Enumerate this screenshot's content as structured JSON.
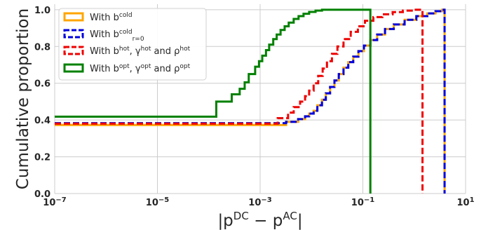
{
  "chart_data": {
    "type": "line",
    "xlabel_parts": [
      [
        "|p",
        ""
      ],
      [
        "DC",
        "sup"
      ],
      [
        " − p",
        ""
      ],
      [
        "AC",
        "sup"
      ],
      [
        "|",
        ""
      ]
    ],
    "ylabel": "Cumulative proportion",
    "x_scale": "log",
    "xlim": [
      1e-07,
      10
    ],
    "ylim": [
      0,
      1.03
    ],
    "x_ticks": [
      {
        "value": 1e-07,
        "base": "10",
        "exp": "−7"
      },
      {
        "value": 1e-05,
        "base": "10",
        "exp": "−5"
      },
      {
        "value": 0.001,
        "base": "10",
        "exp": "−3"
      },
      {
        "value": 0.1,
        "base": "10",
        "exp": "−1"
      },
      {
        "value": 10,
        "base": "10",
        "exp": "1"
      }
    ],
    "y_ticks": [
      0.0,
      0.2,
      0.4,
      0.6,
      0.8,
      1.0
    ],
    "y_tick_labels": [
      "0.0",
      "0.2",
      "0.4",
      "0.6",
      "0.8",
      "1.0"
    ],
    "grid": true,
    "legend_position": "top-left",
    "series": [
      {
        "label_parts": [
          [
            "With b",
            ""
          ],
          [
            "cold",
            "sup"
          ]
        ],
        "color": "#ffa500",
        "style": "solid",
        "points": [
          [
            1e-07,
            0.373
          ],
          [
            0.0032,
            0.373
          ],
          [
            0.0032,
            0.39
          ],
          [
            0.0055,
            0.39
          ],
          [
            0.0055,
            0.405
          ],
          [
            0.0075,
            0.405
          ],
          [
            0.0075,
            0.42
          ],
          [
            0.009,
            0.42
          ],
          [
            0.009,
            0.435
          ],
          [
            0.011,
            0.435
          ],
          [
            0.011,
            0.45
          ],
          [
            0.013,
            0.45
          ],
          [
            0.013,
            0.48
          ],
          [
            0.016,
            0.48
          ],
          [
            0.016,
            0.51
          ],
          [
            0.019,
            0.51
          ],
          [
            0.019,
            0.545
          ],
          [
            0.023,
            0.545
          ],
          [
            0.023,
            0.58
          ],
          [
            0.028,
            0.58
          ],
          [
            0.028,
            0.615
          ],
          [
            0.034,
            0.615
          ],
          [
            0.034,
            0.65
          ],
          [
            0.042,
            0.65
          ],
          [
            0.042,
            0.685
          ],
          [
            0.052,
            0.685
          ],
          [
            0.052,
            0.715
          ],
          [
            0.065,
            0.715
          ],
          [
            0.065,
            0.745
          ],
          [
            0.082,
            0.745
          ],
          [
            0.082,
            0.775
          ],
          [
            0.105,
            0.775
          ],
          [
            0.105,
            0.805
          ],
          [
            0.14,
            0.805
          ],
          [
            0.14,
            0.835
          ],
          [
            0.19,
            0.835
          ],
          [
            0.19,
            0.865
          ],
          [
            0.27,
            0.865
          ],
          [
            0.27,
            0.895
          ],
          [
            0.4,
            0.895
          ],
          [
            0.4,
            0.92
          ],
          [
            0.65,
            0.92
          ],
          [
            0.65,
            0.945
          ],
          [
            1.1,
            0.945
          ],
          [
            1.1,
            0.965
          ],
          [
            1.8,
            0.965
          ],
          [
            1.8,
            0.98
          ],
          [
            2.6,
            0.98
          ],
          [
            2.6,
            0.992
          ],
          [
            3.5,
            0.992
          ],
          [
            3.5,
            1.0
          ],
          [
            3.9,
            1.0
          ],
          [
            3.9,
            0.0
          ]
        ]
      },
      {
        "label_parts": [
          [
            "With b",
            ""
          ],
          [
            "cold",
            "sup"
          ],
          [
            "r=0",
            "sub"
          ]
        ],
        "color": "#0000dd",
        "style": "dashed",
        "points": [
          [
            1e-07,
            0.383
          ],
          [
            0.0032,
            0.383
          ],
          [
            0.0032,
            0.39
          ],
          [
            0.0055,
            0.39
          ],
          [
            0.0055,
            0.405
          ],
          [
            0.0075,
            0.405
          ],
          [
            0.0075,
            0.42
          ],
          [
            0.009,
            0.42
          ],
          [
            0.009,
            0.435
          ],
          [
            0.011,
            0.435
          ],
          [
            0.011,
            0.45
          ],
          [
            0.013,
            0.45
          ],
          [
            0.013,
            0.48
          ],
          [
            0.016,
            0.48
          ],
          [
            0.016,
            0.51
          ],
          [
            0.019,
            0.51
          ],
          [
            0.019,
            0.545
          ],
          [
            0.023,
            0.545
          ],
          [
            0.023,
            0.58
          ],
          [
            0.028,
            0.58
          ],
          [
            0.028,
            0.615
          ],
          [
            0.034,
            0.615
          ],
          [
            0.034,
            0.65
          ],
          [
            0.042,
            0.65
          ],
          [
            0.042,
            0.685
          ],
          [
            0.052,
            0.685
          ],
          [
            0.052,
            0.715
          ],
          [
            0.065,
            0.715
          ],
          [
            0.065,
            0.745
          ],
          [
            0.082,
            0.745
          ],
          [
            0.082,
            0.775
          ],
          [
            0.105,
            0.775
          ],
          [
            0.105,
            0.805
          ],
          [
            0.14,
            0.805
          ],
          [
            0.14,
            0.835
          ],
          [
            0.19,
            0.835
          ],
          [
            0.19,
            0.865
          ],
          [
            0.27,
            0.865
          ],
          [
            0.27,
            0.895
          ],
          [
            0.4,
            0.895
          ],
          [
            0.4,
            0.92
          ],
          [
            0.65,
            0.92
          ],
          [
            0.65,
            0.945
          ],
          [
            1.1,
            0.945
          ],
          [
            1.1,
            0.965
          ],
          [
            1.8,
            0.965
          ],
          [
            1.8,
            0.98
          ],
          [
            2.6,
            0.98
          ],
          [
            2.6,
            0.992
          ],
          [
            3.5,
            0.992
          ],
          [
            3.5,
            1.0
          ],
          [
            3.9,
            1.0
          ],
          [
            3.9,
            0.0
          ]
        ]
      },
      {
        "label_parts": [
          [
            "With b",
            ""
          ],
          [
            "hot",
            "sup"
          ],
          [
            ", γ",
            ""
          ],
          [
            "hot",
            "sup"
          ],
          [
            " and ρ",
            ""
          ],
          [
            "hot",
            "sup"
          ]
        ],
        "color": "#ee0000",
        "style": "dashed",
        "points": [
          [
            1e-07,
            0.38
          ],
          [
            0.0022,
            0.38
          ],
          [
            0.0022,
            0.41
          ],
          [
            0.0035,
            0.41
          ],
          [
            0.0035,
            0.44
          ],
          [
            0.0045,
            0.44
          ],
          [
            0.0045,
            0.47
          ],
          [
            0.006,
            0.47
          ],
          [
            0.006,
            0.5
          ],
          [
            0.0075,
            0.5
          ],
          [
            0.0075,
            0.53
          ],
          [
            0.009,
            0.53
          ],
          [
            0.009,
            0.56
          ],
          [
            0.011,
            0.56
          ],
          [
            0.011,
            0.6
          ],
          [
            0.0135,
            0.6
          ],
          [
            0.0135,
            0.64
          ],
          [
            0.0165,
            0.64
          ],
          [
            0.0165,
            0.68
          ],
          [
            0.02,
            0.68
          ],
          [
            0.02,
            0.72
          ],
          [
            0.025,
            0.72
          ],
          [
            0.025,
            0.76
          ],
          [
            0.032,
            0.76
          ],
          [
            0.032,
            0.8
          ],
          [
            0.042,
            0.8
          ],
          [
            0.042,
            0.84
          ],
          [
            0.058,
            0.84
          ],
          [
            0.058,
            0.88
          ],
          [
            0.08,
            0.88
          ],
          [
            0.08,
            0.91
          ],
          [
            0.11,
            0.91
          ],
          [
            0.11,
            0.94
          ],
          [
            0.16,
            0.94
          ],
          [
            0.16,
            0.96
          ],
          [
            0.24,
            0.96
          ],
          [
            0.24,
            0.975
          ],
          [
            0.38,
            0.975
          ],
          [
            0.38,
            0.987
          ],
          [
            0.6,
            0.987
          ],
          [
            0.6,
            0.995
          ],
          [
            1.0,
            0.995
          ],
          [
            1.0,
            1.0
          ],
          [
            1.45,
            1.0
          ],
          [
            1.45,
            0.0
          ]
        ]
      },
      {
        "label_parts": [
          [
            "With b",
            ""
          ],
          [
            "opt",
            "sup"
          ],
          [
            ", γ",
            ""
          ],
          [
            "opt",
            "sup"
          ],
          [
            " and ρ",
            ""
          ],
          [
            "opt",
            "sup"
          ]
        ],
        "color": "#008000",
        "style": "solid",
        "points": [
          [
            1e-07,
            0.418
          ],
          [
            0.00014,
            0.418
          ],
          [
            0.00014,
            0.5
          ],
          [
            0.00028,
            0.5
          ],
          [
            0.00028,
            0.54
          ],
          [
            0.0004,
            0.54
          ],
          [
            0.0004,
            0.57
          ],
          [
            0.0005,
            0.57
          ],
          [
            0.0005,
            0.605
          ],
          [
            0.0006,
            0.605
          ],
          [
            0.0006,
            0.65
          ],
          [
            0.0008,
            0.65
          ],
          [
            0.0008,
            0.69
          ],
          [
            0.00095,
            0.69
          ],
          [
            0.00095,
            0.72
          ],
          [
            0.0011,
            0.72
          ],
          [
            0.0011,
            0.75
          ],
          [
            0.0013,
            0.75
          ],
          [
            0.0013,
            0.78
          ],
          [
            0.0015,
            0.78
          ],
          [
            0.0015,
            0.81
          ],
          [
            0.0018,
            0.81
          ],
          [
            0.0018,
            0.84
          ],
          [
            0.0021,
            0.84
          ],
          [
            0.0021,
            0.865
          ],
          [
            0.0025,
            0.865
          ],
          [
            0.0025,
            0.89
          ],
          [
            0.003,
            0.89
          ],
          [
            0.003,
            0.91
          ],
          [
            0.0036,
            0.91
          ],
          [
            0.0036,
            0.93
          ],
          [
            0.0045,
            0.93
          ],
          [
            0.0045,
            0.95
          ],
          [
            0.0056,
            0.95
          ],
          [
            0.0056,
            0.965
          ],
          [
            0.007,
            0.965
          ],
          [
            0.007,
            0.978
          ],
          [
            0.009,
            0.978
          ],
          [
            0.009,
            0.988
          ],
          [
            0.012,
            0.988
          ],
          [
            0.012,
            0.995
          ],
          [
            0.016,
            0.995
          ],
          [
            0.016,
            1.0
          ],
          [
            0.14,
            1.0
          ],
          [
            0.14,
            0.0
          ]
        ]
      }
    ]
  }
}
